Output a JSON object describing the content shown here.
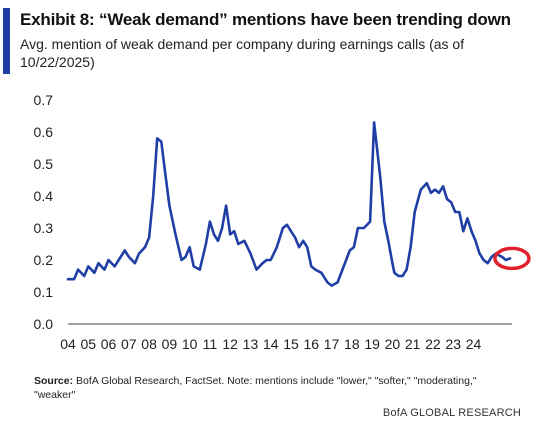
{
  "header": {
    "title": "Exhibit 8: “Weak demand” mentions have been trending down",
    "subtitle": "Avg. mention of weak demand per company during earnings calls (as of 10/22/2025)"
  },
  "footer": {
    "source_label": "Source:",
    "source_text": " BofA Global Research, FactSet. Note: mentions include \"lower,\" \"softer,\" \"moderating,\" \"weaker\"",
    "brand": "BofA GLOBAL RESEARCH"
  },
  "colors": {
    "line": "#1f3fa6",
    "accent": "#1f3fa6",
    "highlight": "#e0202a"
  },
  "chart_data": {
    "type": "line",
    "title": "Exhibit 8: “Weak demand” mentions have been trending down",
    "subtitle": "Avg. mention of weak demand per company during earnings calls (as of 10/22/2025)",
    "xlabel": "",
    "ylabel": "",
    "ylim": [
      0,
      0.7
    ],
    "yticks": [
      "0.0",
      "0.1",
      "0.2",
      "0.3",
      "0.4",
      "0.5",
      "0.6",
      "0.7"
    ],
    "xlim": [
      2004,
      2025.9
    ],
    "xticks": [
      "04",
      "05",
      "06",
      "07",
      "08",
      "09",
      "10",
      "11",
      "12",
      "13",
      "14",
      "15",
      "16",
      "17",
      "18",
      "19",
      "20",
      "21",
      "22",
      "23",
      "24"
    ],
    "grid": false,
    "highlight": {
      "x": 2025.8,
      "y": 0.205,
      "shape": "circle"
    },
    "series": [
      {
        "x": [
          2004.0,
          2004.3,
          2004.5,
          2004.8,
          2005.0,
          2005.3,
          2005.5,
          2005.8,
          2006.0,
          2006.3,
          2006.5,
          2006.8,
          2007.0,
          2007.3,
          2007.5,
          2007.8,
          2008.0,
          2008.2,
          2008.4,
          2008.6,
          2008.8,
          2009.0,
          2009.3,
          2009.6,
          2009.8,
          2010.0,
          2010.2,
          2010.5,
          2010.8,
          2011.0,
          2011.2,
          2011.4,
          2011.6,
          2011.8,
          2012.0,
          2012.2,
          2012.4,
          2012.7,
          2013.0,
          2013.3,
          2013.6,
          2013.8,
          2014.0,
          2014.3,
          2014.6,
          2014.8,
          2015.0,
          2015.2,
          2015.4,
          2015.6,
          2015.8,
          2016.0,
          2016.2,
          2016.5,
          2016.8,
          2017.0,
          2017.3,
          2017.6,
          2017.9,
          2018.1,
          2018.3,
          2018.6,
          2018.9,
          2019.1,
          2019.4,
          2019.6,
          2019.8,
          2020.0,
          2020.1,
          2020.3,
          2020.5,
          2020.7,
          2020.9,
          2021.1,
          2021.4,
          2021.7,
          2021.9,
          2022.1,
          2022.3,
          2022.5,
          2022.7,
          2022.9,
          2023.1,
          2023.3,
          2023.5,
          2023.7,
          2023.9,
          2024.1,
          2024.3,
          2024.5,
          2024.7,
          2024.9,
          2025.1,
          2025.4,
          2025.6,
          2025.8
        ],
        "values": [
          0.14,
          0.14,
          0.17,
          0.15,
          0.18,
          0.16,
          0.19,
          0.17,
          0.2,
          0.18,
          0.2,
          0.23,
          0.21,
          0.19,
          0.22,
          0.24,
          0.27,
          0.4,
          0.58,
          0.57,
          0.47,
          0.37,
          0.28,
          0.2,
          0.21,
          0.24,
          0.18,
          0.17,
          0.25,
          0.32,
          0.28,
          0.26,
          0.3,
          0.37,
          0.28,
          0.29,
          0.25,
          0.26,
          0.22,
          0.17,
          0.19,
          0.2,
          0.2,
          0.24,
          0.3,
          0.31,
          0.29,
          0.27,
          0.24,
          0.26,
          0.24,
          0.18,
          0.17,
          0.16,
          0.13,
          0.12,
          0.13,
          0.18,
          0.23,
          0.24,
          0.3,
          0.3,
          0.32,
          0.63,
          0.46,
          0.32,
          0.26,
          0.19,
          0.16,
          0.15,
          0.15,
          0.17,
          0.24,
          0.35,
          0.42,
          0.44,
          0.41,
          0.42,
          0.41,
          0.43,
          0.39,
          0.38,
          0.35,
          0.35,
          0.29,
          0.33,
          0.29,
          0.26,
          0.22,
          0.2,
          0.19,
          0.21,
          0.22,
          0.21,
          0.2,
          0.205
        ]
      }
    ]
  }
}
